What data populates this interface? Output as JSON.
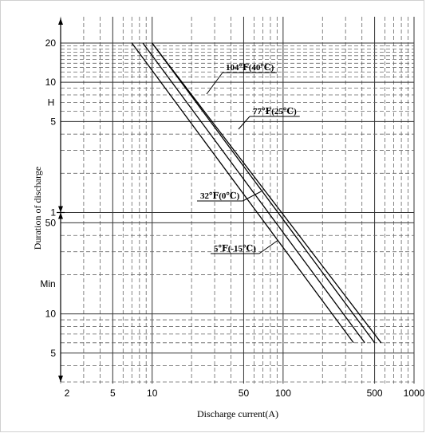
{
  "chart_data": {
    "type": "line",
    "title": "",
    "xlabel": "Discharge current(A)",
    "ylabel": "Duration of discharge",
    "x_scale": "log",
    "y_scale": "log",
    "xlim": [
      2,
      1000
    ],
    "x_ticks": [
      "2",
      "5",
      "10",
      "50",
      "100",
      "500",
      "1000"
    ],
    "y_ticks_hours": [
      "20",
      "10",
      "5",
      "1"
    ],
    "y_ticks_minutes": [
      "50",
      "10",
      "5"
    ],
    "y_unit_hours": "H",
    "y_unit_minutes": "Min",
    "grid": true,
    "series": [
      {
        "name": "104℉(40℃)",
        "points": [
          {
            "x": 10,
            "y_min": 1200
          },
          {
            "x": 560,
            "y_min": 6
          }
        ]
      },
      {
        "name": "77℉(25℃)",
        "points": [
          {
            "x": 10,
            "y_min": 1200
          },
          {
            "x": 500,
            "y_min": 6
          }
        ]
      },
      {
        "name": "32℉(0℃)",
        "points": [
          {
            "x": 8.5,
            "y_min": 1200
          },
          {
            "x": 420,
            "y_min": 6
          }
        ]
      },
      {
        "name": "5℉(-15℃)",
        "points": [
          {
            "x": 7,
            "y_min": 1200
          },
          {
            "x": 345,
            "y_min": 6
          }
        ]
      }
    ]
  }
}
